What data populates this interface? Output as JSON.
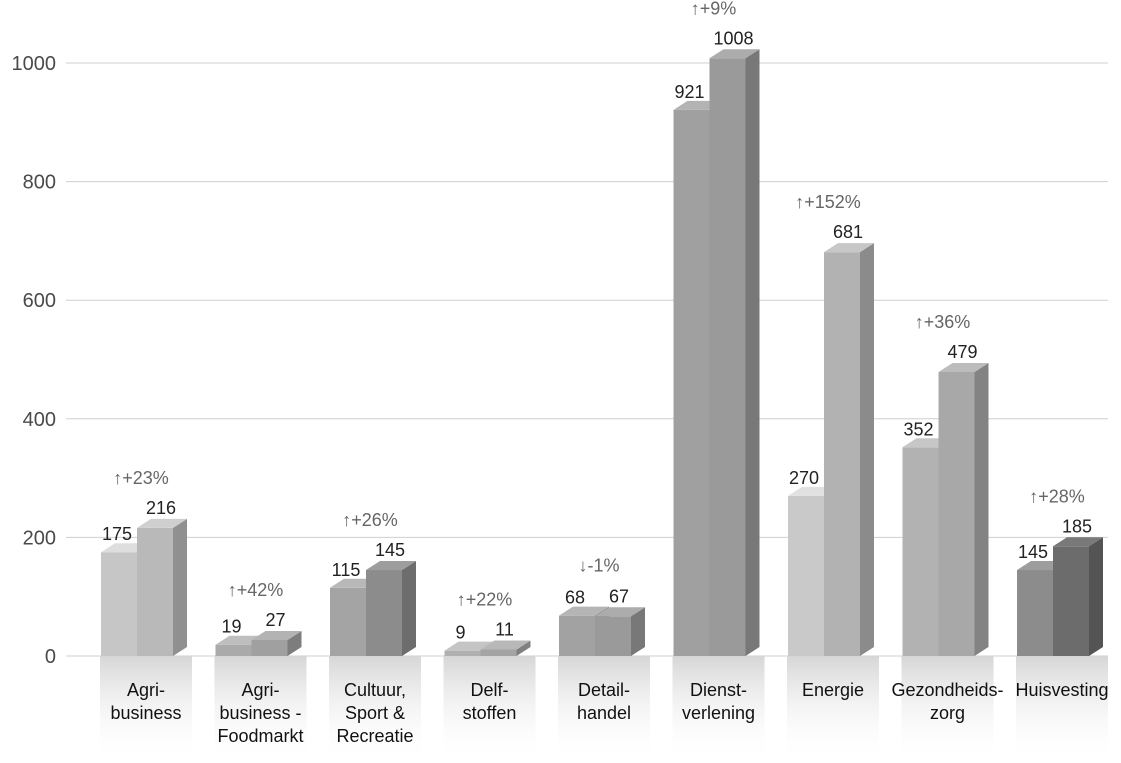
{
  "chart_data": {
    "type": "bar",
    "ylim": [
      0,
      1000
    ],
    "yticks": [
      0,
      200,
      400,
      600,
      800,
      1000
    ],
    "grid": true,
    "categories": [
      [
        "Agri-",
        "business"
      ],
      [
        "Agri-",
        "business -",
        "Foodmarkt"
      ],
      [
        "Cultuur,",
        "Sport &",
        "Recreatie"
      ],
      [
        "Delf-",
        "stoffen"
      ],
      [
        "Detail-",
        "handel"
      ],
      [
        "Dienst-",
        "verlening"
      ],
      [
        "Energie"
      ],
      [
        "Gezondheids-",
        "zorg"
      ],
      [
        "Huisvesting"
      ]
    ],
    "series": [
      {
        "values": [
          175,
          19,
          115,
          9,
          68,
          921,
          270,
          352,
          145
        ]
      },
      {
        "values": [
          216,
          27,
          145,
          11,
          67,
          1008,
          681,
          479,
          185
        ]
      }
    ],
    "changes": [
      "↑+23%",
      "↑+42%",
      "↑+26%",
      "↑+22%",
      "↓-1%",
      "↑+9%",
      "↑+152%",
      "↑+36%",
      "↑+28%"
    ],
    "colors": {
      "front_light": [
        "#c6c6c6",
        "#aaaaaa",
        "#a4a4a4",
        "#b0b0b0",
        "#a2a2a2",
        "#a0a0a0",
        "#c9c9c9",
        "#b2b2b2",
        "#8c8c8c"
      ],
      "front_dark": [
        "#b9b9b9",
        "#a0a0a0",
        "#8c8c8c",
        "#a4a4a4",
        "#9a9a9a",
        "#9a9a9a",
        "#b2b2b2",
        "#a8a8a8",
        "#6c6c6c"
      ],
      "grid": "#cfcfcf",
      "text": "#222222"
    }
  }
}
